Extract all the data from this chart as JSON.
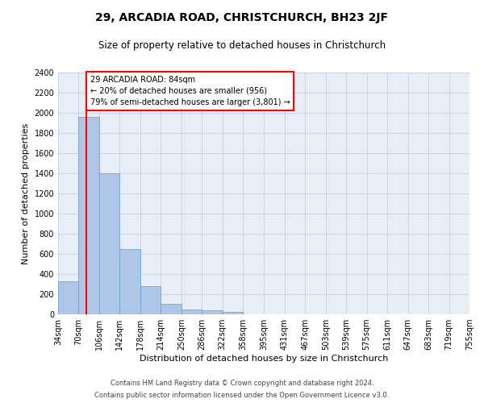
{
  "title": "29, ARCADIA ROAD, CHRISTCHURCH, BH23 2JF",
  "subtitle": "Size of property relative to detached houses in Christchurch",
  "xlabel": "Distribution of detached houses by size in Christchurch",
  "ylabel": "Number of detached properties",
  "footnote1": "Contains HM Land Registry data © Crown copyright and database right 2024.",
  "footnote2": "Contains public sector information licensed under the Open Government Licence v3.0.",
  "annotation_line1": "29 ARCADIA ROAD: 84sqm",
  "annotation_line2": "← 20% of detached houses are smaller (956)",
  "annotation_line3": "79% of semi-detached houses are larger (3,801) →",
  "bar_color": "#aec6e8",
  "bar_edge_color": "#6699cc",
  "red_line_x": 84,
  "categories": [
    "34sqm",
    "70sqm",
    "106sqm",
    "142sqm",
    "178sqm",
    "214sqm",
    "250sqm",
    "286sqm",
    "322sqm",
    "358sqm",
    "395sqm",
    "431sqm",
    "467sqm",
    "503sqm",
    "539sqm",
    "575sqm",
    "611sqm",
    "647sqm",
    "683sqm",
    "719sqm",
    "755sqm"
  ],
  "bin_edges": [
    34,
    70,
    106,
    142,
    178,
    214,
    250,
    286,
    322,
    358,
    395,
    431,
    467,
    503,
    539,
    575,
    611,
    647,
    683,
    719,
    755
  ],
  "bin_width": 36,
  "values": [
    325,
    1960,
    1400,
    650,
    280,
    105,
    50,
    40,
    25,
    0,
    0,
    0,
    0,
    0,
    0,
    0,
    0,
    0,
    0,
    0
  ],
  "ylim": [
    0,
    2400
  ],
  "yticks": [
    0,
    200,
    400,
    600,
    800,
    1000,
    1200,
    1400,
    1600,
    1800,
    2000,
    2200,
    2400
  ],
  "grid_color": "#c8d4e8",
  "background_color": "#e8eef8",
  "title_fontsize": 10,
  "subtitle_fontsize": 8.5,
  "xlabel_fontsize": 8,
  "ylabel_fontsize": 8,
  "tick_fontsize": 7,
  "annotation_fontsize": 7,
  "footnote_fontsize": 6
}
